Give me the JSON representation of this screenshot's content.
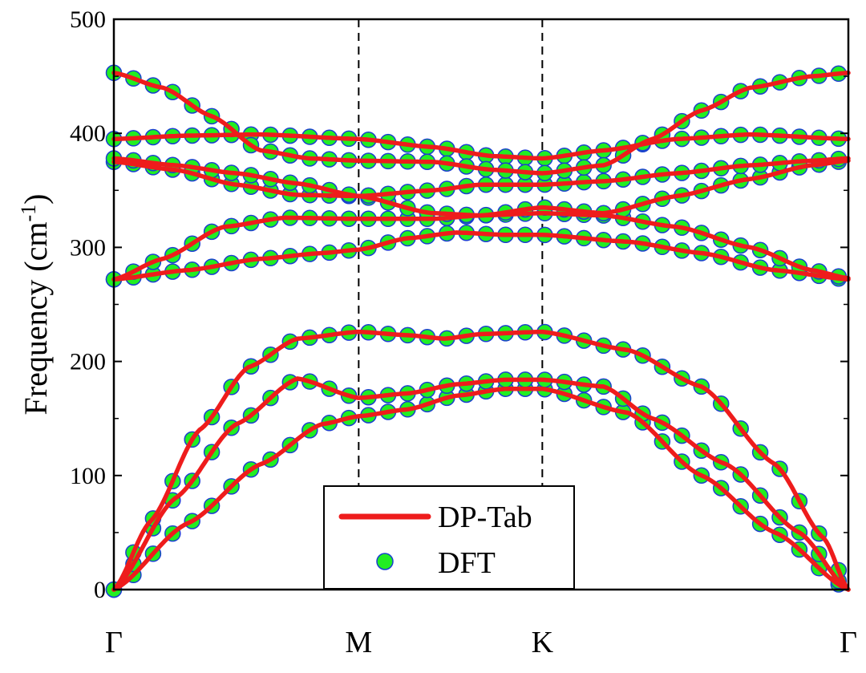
{
  "chart_data": {
    "type": "line",
    "title": "",
    "xlabel": "",
    "ylabel_main": "Frequency (cm",
    "ylabel_sup": "-1",
    "ylabel_tail": ")",
    "ylim": [
      0,
      500
    ],
    "yticks": [
      0,
      100,
      200,
      300,
      400,
      500
    ],
    "xlim": [
      0,
      3
    ],
    "symmetry_points": [
      {
        "label": "Γ",
        "x": 0
      },
      {
        "label": "M",
        "x": 1
      },
      {
        "label": "K",
        "x": 1.75
      },
      {
        "label": "Γ",
        "x": 3
      }
    ],
    "vlines_at": [
      1,
      1.75
    ],
    "legend": {
      "placement": "bottom-center",
      "entries": [
        {
          "label": "DP-Tab",
          "kind": "line",
          "color": "#ee1c1c"
        },
        {
          "label": "DFT",
          "kind": "marker",
          "color": "#22ee22",
          "edge": "#1a3fd0"
        }
      ]
    },
    "colors": {
      "line": "#ee1c1c",
      "marker_fill": "#22ee22",
      "marker_edge": "#1a3fd0"
    },
    "series": [
      {
        "name": "DP-Tab",
        "style": "line",
        "bands": [
          [
            [
              0,
              0
            ],
            [
              0.3,
              58
            ],
            [
              0.6,
              110
            ],
            [
              0.85,
              145
            ],
            [
              1,
              152
            ],
            [
              1.2,
              158
            ],
            [
              1.4,
              170
            ],
            [
              1.6,
              176
            ],
            [
              1.75,
              176
            ],
            [
              2.1,
              155
            ],
            [
              2.4,
              100
            ],
            [
              2.7,
              50
            ],
            [
              3,
              0
            ]
          ],
          [
            [
              0,
              0
            ],
            [
              0.25,
              80
            ],
            [
              0.5,
              145
            ],
            [
              0.75,
              185
            ],
            [
              1,
              168
            ],
            [
              1.2,
              172
            ],
            [
              1.4,
              180
            ],
            [
              1.6,
              184
            ],
            [
              1.75,
              184
            ],
            [
              2.0,
              178
            ],
            [
              2.2,
              150
            ],
            [
              2.5,
              110
            ],
            [
              2.8,
              50
            ],
            [
              3,
              0
            ]
          ],
          [
            [
              0,
              0
            ],
            [
              0.15,
              60
            ],
            [
              0.35,
              140
            ],
            [
              0.55,
              195
            ],
            [
              0.75,
              220
            ],
            [
              1,
              226
            ],
            [
              1.2,
              223
            ],
            [
              1.35,
              220
            ],
            [
              1.5,
              224
            ],
            [
              1.75,
              226
            ],
            [
              2.1,
              210
            ],
            [
              2.4,
              178
            ],
            [
              2.7,
              110
            ],
            [
              2.9,
              45
            ],
            [
              3,
              0
            ]
          ],
          [
            [
              0,
              272
            ],
            [
              0.3,
              280
            ],
            [
              0.6,
              290
            ],
            [
              0.85,
              295
            ],
            [
              1,
              298
            ],
            [
              1.2,
              308
            ],
            [
              1.4,
              313
            ],
            [
              1.6,
              311
            ],
            [
              1.75,
              311
            ],
            [
              2.1,
              305
            ],
            [
              2.4,
              295
            ],
            [
              2.7,
              280
            ],
            [
              3,
              272
            ]
          ],
          [
            [
              0,
              272
            ],
            [
              0.2,
              290
            ],
            [
              0.45,
              318
            ],
            [
              0.7,
              326
            ],
            [
              1,
              325
            ],
            [
              1.3,
              325
            ],
            [
              1.5,
              328
            ],
            [
              1.75,
              330
            ],
            [
              2.0,
              328
            ],
            [
              2.3,
              318
            ],
            [
              2.6,
              300
            ],
            [
              2.85,
              280
            ],
            [
              3,
              273
            ]
          ],
          [
            [
              0,
              375
            ],
            [
              0.25,
              368
            ],
            [
              0.5,
              355
            ],
            [
              0.75,
              346
            ],
            [
              1,
              345
            ],
            [
              1.3,
              330
            ],
            [
              1.5,
              328
            ],
            [
              1.75,
              335
            ],
            [
              2.0,
              330
            ],
            [
              2.3,
              345
            ],
            [
              2.6,
              360
            ],
            [
              2.85,
              372
            ],
            [
              3,
              376
            ]
          ],
          [
            [
              0,
              378
            ],
            [
              0.25,
              372
            ],
            [
              0.5,
              365
            ],
            [
              0.75,
              356
            ],
            [
              1,
              345
            ],
            [
              1.3,
              350
            ],
            [
              1.5,
              355
            ],
            [
              1.75,
              355
            ],
            [
              2.0,
              358
            ],
            [
              2.3,
              365
            ],
            [
              2.6,
              372
            ],
            [
              2.85,
              376
            ],
            [
              3,
              378
            ]
          ],
          [
            [
              0,
              395
            ],
            [
              0.3,
              398
            ],
            [
              0.6,
              399
            ],
            [
              1,
              395
            ],
            [
              1.3,
              388
            ],
            [
              1.55,
              380
            ],
            [
              1.75,
              378
            ],
            [
              2.0,
              385
            ],
            [
              2.3,
              395
            ],
            [
              2.6,
              399
            ],
            [
              3,
              395
            ]
          ],
          [
            [
              0,
              453
            ],
            [
              0.2,
              440
            ],
            [
              0.4,
              415
            ],
            [
              0.6,
              385
            ],
            [
              0.8,
              378
            ],
            [
              1,
              376
            ],
            [
              1.3,
              375
            ],
            [
              1.55,
              368
            ],
            [
              1.75,
              365
            ],
            [
              2.0,
              372
            ],
            [
              2.2,
              395
            ],
            [
              2.4,
              420
            ],
            [
              2.6,
              440
            ],
            [
              2.85,
              450
            ],
            [
              3,
              453
            ]
          ]
        ]
      },
      {
        "name": "DFT",
        "style": "markers",
        "samples": [
          {
            "band": 0,
            "step": 0.08
          },
          {
            "band": 1,
            "step": 0.08
          },
          {
            "band": 2,
            "step": 0.08
          },
          {
            "band": 3,
            "step": 0.08
          },
          {
            "band": 4,
            "step": 0.08
          },
          {
            "band": 5,
            "step": 0.08
          },
          {
            "band": 6,
            "step": 0.08
          },
          {
            "band": 7,
            "step": 0.08
          },
          {
            "band": 8,
            "step": 0.08
          }
        ]
      }
    ]
  }
}
